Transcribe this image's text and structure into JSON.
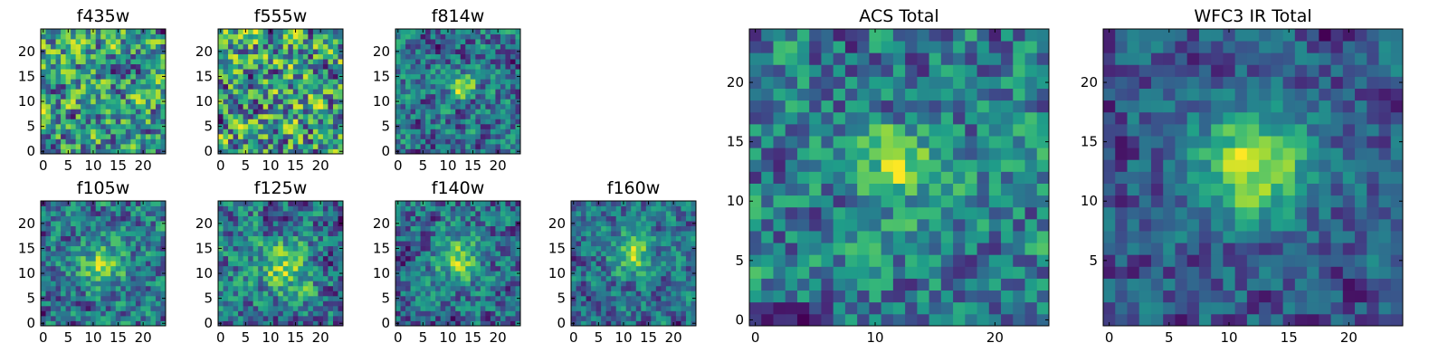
{
  "chart_data": [
    {
      "type": "heatmap",
      "title": "f435w",
      "xticks": [
        "0",
        "5",
        "10",
        "15",
        "20"
      ],
      "yticks": [
        "0",
        "5",
        "10",
        "15",
        "20"
      ],
      "xlim": [
        -0.5,
        24.5
      ],
      "ylim": [
        -0.5,
        24.5
      ],
      "grid_size": 25,
      "peak": [
        12,
        12
      ],
      "peak_strength": 0.02,
      "noise": 1.0,
      "peak_width": 2.0,
      "seed": 11,
      "colormap": "viridis",
      "value_range": [
        0,
        1
      ]
    },
    {
      "type": "heatmap",
      "title": "f555w",
      "xticks": [
        "0",
        "5",
        "10",
        "15",
        "20"
      ],
      "yticks": [
        "0",
        "5",
        "10",
        "15",
        "20"
      ],
      "xlim": [
        -0.5,
        24.5
      ],
      "ylim": [
        -0.5,
        24.5
      ],
      "grid_size": 25,
      "peak": [
        12,
        12
      ],
      "peak_strength": 0.05,
      "noise": 1.0,
      "peak_width": 2.0,
      "seed": 23,
      "colormap": "viridis",
      "value_range": [
        0,
        1
      ]
    },
    {
      "type": "heatmap",
      "title": "f814w",
      "xticks": [
        "0",
        "5",
        "10",
        "15",
        "20"
      ],
      "yticks": [
        "0",
        "5",
        "10",
        "15",
        "20"
      ],
      "xlim": [
        -0.5,
        24.5
      ],
      "ylim": [
        -0.5,
        24.5
      ],
      "grid_size": 25,
      "peak": [
        13,
        13
      ],
      "peak_strength": 0.55,
      "noise": 0.75,
      "peak_width": 1.6,
      "seed": 37,
      "colormap": "viridis",
      "value_range": [
        0,
        1
      ]
    },
    {
      "type": "heatmap",
      "title": "f105w",
      "xticks": [
        "0",
        "5",
        "10",
        "15",
        "20"
      ],
      "yticks": [
        "0",
        "5",
        "10",
        "15",
        "20"
      ],
      "xlim": [
        -0.5,
        24.5
      ],
      "ylim": [
        -0.5,
        24.5
      ],
      "grid_size": 25,
      "peak": [
        12,
        12
      ],
      "peak_strength": 0.45,
      "noise": 0.85,
      "peak_width": 3.2,
      "seed": 41,
      "colormap": "viridis",
      "value_range": [
        0,
        1
      ]
    },
    {
      "type": "heatmap",
      "title": "f125w",
      "xticks": [
        "0",
        "5",
        "10",
        "15",
        "20"
      ],
      "yticks": [
        "0",
        "5",
        "10",
        "15",
        "20"
      ],
      "xlim": [
        -0.5,
        24.5
      ],
      "ylim": [
        -0.5,
        24.5
      ],
      "grid_size": 25,
      "peak": [
        13,
        11
      ],
      "peak_strength": 0.4,
      "noise": 0.85,
      "peak_width": 3.5,
      "seed": 53,
      "colormap": "viridis",
      "value_range": [
        0,
        1
      ]
    },
    {
      "type": "heatmap",
      "title": "f140w",
      "xticks": [
        "0",
        "5",
        "10",
        "15",
        "20"
      ],
      "yticks": [
        "0",
        "5",
        "10",
        "15",
        "20"
      ],
      "xlim": [
        -0.5,
        24.5
      ],
      "ylim": [
        -0.5,
        24.5
      ],
      "grid_size": 25,
      "peak": [
        12,
        13
      ],
      "peak_strength": 0.45,
      "noise": 0.8,
      "peak_width": 3.2,
      "seed": 67,
      "colormap": "viridis",
      "value_range": [
        0,
        1
      ]
    },
    {
      "type": "heatmap",
      "title": "f160w",
      "xticks": [
        "0",
        "5",
        "10",
        "15",
        "20"
      ],
      "yticks": [
        "0",
        "5",
        "10",
        "15",
        "20"
      ],
      "xlim": [
        -0.5,
        24.5
      ],
      "ylim": [
        -0.5,
        24.5
      ],
      "grid_size": 25,
      "peak": [
        12,
        14
      ],
      "peak_strength": 0.5,
      "noise": 0.8,
      "peak_width": 3.0,
      "seed": 79,
      "colormap": "viridis",
      "value_range": [
        0,
        1
      ]
    },
    {
      "type": "heatmap",
      "title": "ACS Total",
      "xticks": [
        "0",
        "10",
        "20"
      ],
      "yticks": [
        "0",
        "5",
        "10",
        "15",
        "20"
      ],
      "xlim": [
        -0.5,
        24.5
      ],
      "ylim": [
        -0.5,
        24.5
      ],
      "grid_size": 25,
      "peak": [
        12,
        13
      ],
      "peak_strength": 0.3,
      "noise": 0.55,
      "peak_width": 2.2,
      "seed": 97,
      "colormap": "viridis",
      "value_range": [
        0,
        1
      ]
    },
    {
      "type": "heatmap",
      "title": "WFC3 IR Total",
      "xticks": [
        "0",
        "5",
        "10",
        "15",
        "20"
      ],
      "yticks": [
        "5",
        "10",
        "15",
        "20"
      ],
      "xlim": [
        -0.5,
        24.5
      ],
      "ylim": [
        -0.5,
        24.5
      ],
      "grid_size": 25,
      "peak": [
        12,
        13
      ],
      "peak_strength": 0.55,
      "noise": 0.5,
      "peak_width": 3.2,
      "seed": 113,
      "colormap": "viridis",
      "value_range": [
        0,
        1
      ]
    }
  ]
}
